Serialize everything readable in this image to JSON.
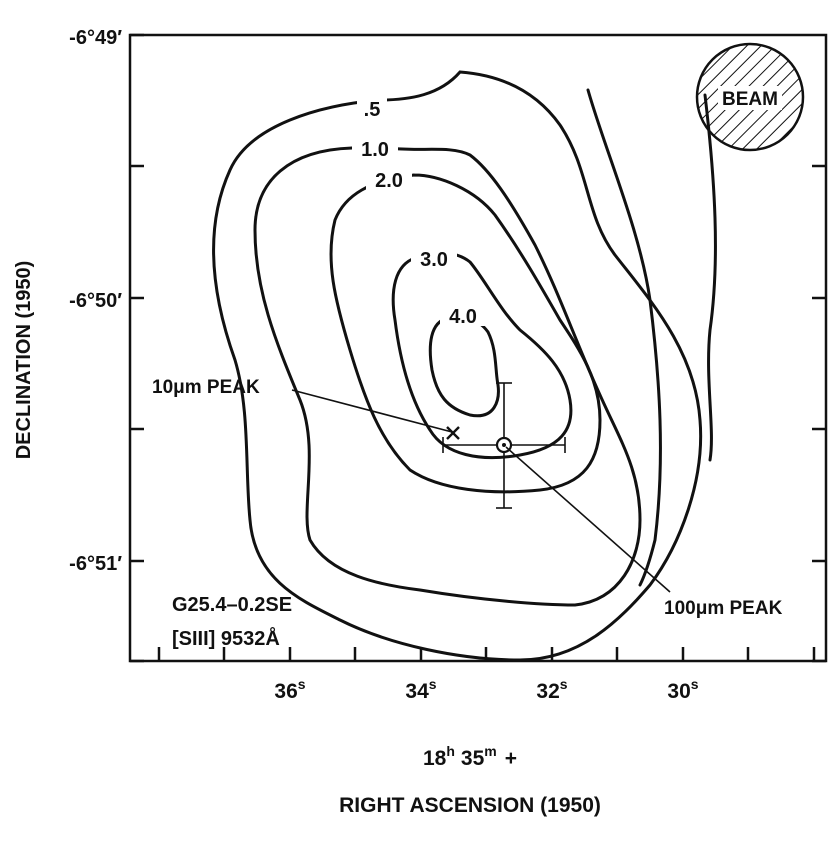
{
  "chart_data": {
    "type": "contour",
    "xlabel_line1": "18h 35m +",
    "xlabel_hms": {
      "h": "18",
      "h_unit": "h",
      "m": "35",
      "m_unit": "m",
      "suffix": "+"
    },
    "xlabel": "RIGHT ASCENSION (1950)",
    "ylabel": "DECLINATION (1950)",
    "x_ticks": [
      {
        "value": 36,
        "label": "36",
        "unit": "s"
      },
      {
        "value": 34,
        "label": "34",
        "unit": "s"
      },
      {
        "value": 32,
        "label": "32",
        "unit": "s"
      },
      {
        "value": 30,
        "label": "30",
        "unit": "s"
      }
    ],
    "y_ticks": [
      {
        "value": -6.8167,
        "label": "-6°49′"
      },
      {
        "value": -6.8333,
        "label": "-6°50′"
      },
      {
        "value": -6.85,
        "label": "-6°51′"
      }
    ],
    "contour_levels": [
      ".5",
      "1.0",
      "2.0",
      "3.0",
      "4.0"
    ],
    "annotations": {
      "beam": "BEAM",
      "peak10": "10μm PEAK",
      "peak100": "100μm PEAK",
      "source": "G25.4–0.2SE",
      "line": "[SIII]  9532Å"
    }
  }
}
